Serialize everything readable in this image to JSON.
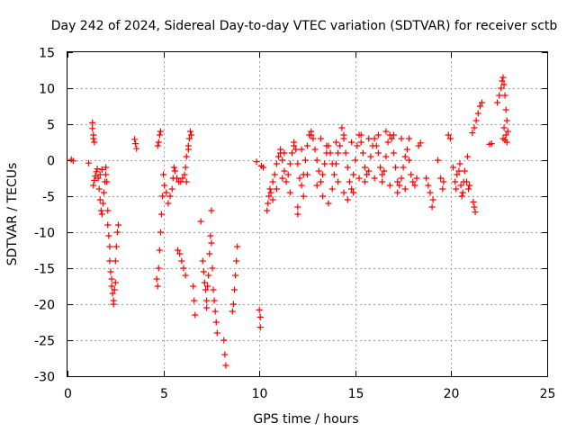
{
  "chart_data": {
    "type": "scatter",
    "title": "Day 242 of 2024, Sidereal Day-to-day VTEC variation (SDTVAR) for receiver sctb",
    "xlabel": "GPS time / hours",
    "ylabel": "SDTVAR / TECUs",
    "xlim": [
      0,
      25
    ],
    "ylim": [
      -30,
      15
    ],
    "x_ticks": [
      0,
      5,
      10,
      15,
      20,
      25
    ],
    "y_ticks": [
      15,
      10,
      5,
      0,
      -5,
      -10,
      -15,
      -20,
      -25,
      -30
    ],
    "x_tick_labels": [
      "0",
      "5",
      "10",
      "15",
      "20",
      "25"
    ],
    "y_tick_labels": [
      "15",
      "10",
      "5",
      "0",
      "-5",
      "-10",
      "-15",
      "-20",
      "-25",
      "-30"
    ],
    "grid": true,
    "marker": "+",
    "marker_color": "#ff0000",
    "series": [
      {
        "name": "SDTVAR",
        "points": [
          [
            0.2,
            0.1
          ],
          [
            0.3,
            -0.1
          ],
          [
            1.1,
            -0.4
          ],
          [
            1.3,
            5.2
          ],
          [
            1.3,
            4.4
          ],
          [
            1.35,
            3.5
          ],
          [
            1.35,
            3.0
          ],
          [
            1.4,
            2.5
          ],
          [
            1.35,
            -3.5
          ],
          [
            1.4,
            -2.8
          ],
          [
            1.45,
            -2.2
          ],
          [
            1.5,
            -1.6
          ],
          [
            1.55,
            -1.2
          ],
          [
            1.6,
            -2.5
          ],
          [
            1.65,
            -4.0
          ],
          [
            1.7,
            -5.5
          ],
          [
            1.75,
            -7.0
          ],
          [
            1.8,
            -7.5
          ],
          [
            1.85,
            -6.0
          ],
          [
            1.9,
            -4.5
          ],
          [
            1.95,
            -3.0
          ],
          [
            2.0,
            -2.0
          ],
          [
            2.05,
            -3.0
          ],
          [
            2.1,
            -7.0
          ],
          [
            2.1,
            -9.0
          ],
          [
            2.15,
            -10.5
          ],
          [
            2.2,
            -12.0
          ],
          [
            2.2,
            -14.0
          ],
          [
            2.25,
            -15.5
          ],
          [
            2.3,
            -17.5
          ],
          [
            2.35,
            -18.5
          ],
          [
            2.4,
            -19.5
          ],
          [
            2.45,
            -18.0
          ],
          [
            2.5,
            -17.0
          ],
          [
            2.5,
            -14.0
          ],
          [
            2.55,
            -12.0
          ],
          [
            2.3,
            -16.5
          ],
          [
            2.4,
            -20.0
          ],
          [
            2.6,
            -10.0
          ],
          [
            2.65,
            -9.0
          ],
          [
            2.0,
            -1.0
          ],
          [
            1.8,
            -1.3
          ],
          [
            1.7,
            -2.0
          ],
          [
            3.5,
            2.9
          ],
          [
            3.55,
            2.3
          ],
          [
            3.6,
            1.6
          ],
          [
            4.65,
            -16.5
          ],
          [
            4.7,
            -17.5
          ],
          [
            4.75,
            -15.0
          ],
          [
            4.8,
            -12.5
          ],
          [
            4.85,
            -10.0
          ],
          [
            4.9,
            -7.5
          ],
          [
            4.95,
            -5.0
          ],
          [
            5.0,
            -2.0
          ],
          [
            4.7,
            2.0
          ],
          [
            4.75,
            2.5
          ],
          [
            4.8,
            3.5
          ],
          [
            4.85,
            4.0
          ],
          [
            5.05,
            -3.5
          ],
          [
            5.15,
            -4.5
          ],
          [
            5.25,
            -6.0
          ],
          [
            5.35,
            -5.0
          ],
          [
            5.45,
            -4.0
          ],
          [
            5.5,
            -2.5
          ],
          [
            5.55,
            -1.0
          ],
          [
            5.6,
            -1.5
          ],
          [
            5.7,
            -2.5
          ],
          [
            5.8,
            -3.0
          ],
          [
            5.9,
            -3.0
          ],
          [
            6.0,
            -2.5
          ],
          [
            6.1,
            -2.0
          ],
          [
            6.15,
            -1.0
          ],
          [
            6.2,
            0.5
          ],
          [
            6.3,
            2.0
          ],
          [
            6.35,
            3.0
          ],
          [
            6.4,
            4.0
          ],
          [
            6.45,
            3.5
          ],
          [
            6.3,
            1.5
          ],
          [
            6.2,
            -3.0
          ],
          [
            5.75,
            -12.5
          ],
          [
            5.85,
            -13.0
          ],
          [
            5.95,
            -14.0
          ],
          [
            6.05,
            -15.0
          ],
          [
            6.15,
            -16.0
          ],
          [
            6.55,
            -17.5
          ],
          [
            6.6,
            -19.5
          ],
          [
            6.65,
            -21.5
          ],
          [
            6.95,
            -8.5
          ],
          [
            7.05,
            -14.0
          ],
          [
            7.1,
            -15.5
          ],
          [
            7.15,
            -17.0
          ],
          [
            7.2,
            -18.0
          ],
          [
            7.25,
            -19.5
          ],
          [
            7.3,
            -17.5
          ],
          [
            7.35,
            -16.0
          ],
          [
            7.4,
            -13.0
          ],
          [
            7.45,
            -10.5
          ],
          [
            7.5,
            -7.0
          ],
          [
            7.5,
            -11.5
          ],
          [
            7.55,
            -15.0
          ],
          [
            7.6,
            -18.0
          ],
          [
            7.65,
            -19.5
          ],
          [
            7.7,
            -21.0
          ],
          [
            7.75,
            -22.5
          ],
          [
            7.8,
            -24.0
          ],
          [
            7.25,
            -20.5
          ],
          [
            8.15,
            -25.0
          ],
          [
            8.2,
            -27.0
          ],
          [
            8.25,
            -28.5
          ],
          [
            8.6,
            -21.0
          ],
          [
            8.65,
            -20.0
          ],
          [
            8.7,
            -18.0
          ],
          [
            8.75,
            -16.0
          ],
          [
            8.8,
            -14.0
          ],
          [
            8.85,
            -12.0
          ],
          [
            9.85,
            -0.2
          ],
          [
            10.0,
            -20.8
          ],
          [
            10.05,
            -21.8
          ],
          [
            10.05,
            -23.2
          ],
          [
            10.1,
            -0.8
          ],
          [
            10.2,
            -1.0
          ],
          [
            10.4,
            -7.0
          ],
          [
            10.45,
            -6.0
          ],
          [
            10.5,
            -5.0
          ],
          [
            10.55,
            -4.0
          ],
          [
            10.6,
            -4.5
          ],
          [
            10.7,
            -3.0
          ],
          [
            10.8,
            -2.0
          ],
          [
            10.9,
            -0.5
          ],
          [
            11.0,
            0.5
          ],
          [
            11.1,
            1.0
          ],
          [
            11.2,
            0.0
          ],
          [
            11.3,
            -1.5
          ],
          [
            11.4,
            -3.0
          ],
          [
            11.5,
            -2.0
          ],
          [
            11.6,
            -0.5
          ],
          [
            11.7,
            1.0
          ],
          [
            11.8,
            2.5
          ],
          [
            11.9,
            1.5
          ],
          [
            12.0,
            -0.5
          ],
          [
            12.1,
            -2.5
          ],
          [
            12.2,
            -3.5
          ],
          [
            12.3,
            -2.0
          ],
          [
            12.4,
            0.0
          ],
          [
            12.5,
            2.0
          ],
          [
            12.6,
            3.5
          ],
          [
            12.7,
            4.0
          ],
          [
            12.8,
            3.0
          ],
          [
            12.9,
            1.5
          ],
          [
            13.0,
            0.0
          ],
          [
            13.1,
            -1.5
          ],
          [
            13.2,
            -3.0
          ],
          [
            13.3,
            -2.0
          ],
          [
            13.4,
            -0.5
          ],
          [
            13.5,
            1.0
          ],
          [
            13.6,
            2.0
          ],
          [
            13.7,
            1.0
          ],
          [
            13.8,
            -0.5
          ],
          [
            13.9,
            -2.0
          ],
          [
            14.0,
            -0.5
          ],
          [
            14.1,
            1.0
          ],
          [
            14.2,
            2.0
          ],
          [
            14.3,
            4.5
          ],
          [
            14.4,
            3.0
          ],
          [
            14.5,
            1.0
          ],
          [
            14.6,
            -1.0
          ],
          [
            14.7,
            -3.0
          ],
          [
            14.8,
            -4.0
          ],
          [
            14.9,
            -2.0
          ],
          [
            15.0,
            0.0
          ],
          [
            15.1,
            2.0
          ],
          [
            15.2,
            3.5
          ],
          [
            15.3,
            2.5
          ],
          [
            15.4,
            1.0
          ],
          [
            15.5,
            -1.0
          ],
          [
            15.6,
            -2.0
          ],
          [
            15.7,
            -1.5
          ],
          [
            15.8,
            0.5
          ],
          [
            15.9,
            2.0
          ],
          [
            16.0,
            3.0
          ],
          [
            16.1,
            2.0
          ],
          [
            16.2,
            1.0
          ],
          [
            16.3,
            -1.0
          ],
          [
            16.4,
            -2.0
          ],
          [
            16.5,
            -1.5
          ],
          [
            16.6,
            0.5
          ],
          [
            16.7,
            2.5
          ],
          [
            16.8,
            3.5
          ],
          [
            16.9,
            3.0
          ],
          [
            17.0,
            1.0
          ],
          [
            17.1,
            -1.0
          ],
          [
            17.2,
            -3.0
          ],
          [
            17.3,
            -3.5
          ],
          [
            17.4,
            -2.5
          ],
          [
            17.5,
            -1.0
          ],
          [
            17.6,
            0.5
          ],
          [
            17.7,
            1.5
          ],
          [
            17.8,
            0.0
          ],
          [
            17.9,
            -2.0
          ],
          [
            18.0,
            -3.0
          ],
          [
            18.1,
            -3.5
          ],
          [
            18.2,
            -2.5
          ],
          [
            18.3,
            2.0
          ],
          [
            18.4,
            2.4
          ],
          [
            10.7,
            -5.5
          ],
          [
            10.9,
            -4.0
          ],
          [
            11.2,
            -2.5
          ],
          [
            11.6,
            -4.5
          ],
          [
            12.0,
            -6.5
          ],
          [
            12.3,
            -5.0
          ],
          [
            12.0,
            -7.5
          ],
          [
            12.5,
            -2.0
          ],
          [
            13.0,
            -3.5
          ],
          [
            13.3,
            -5.0
          ],
          [
            13.6,
            -6.0
          ],
          [
            13.8,
            -4.0
          ],
          [
            14.1,
            -3.0
          ],
          [
            14.4,
            -4.5
          ],
          [
            14.6,
            -5.5
          ],
          [
            14.9,
            -4.5
          ],
          [
            15.2,
            -2.5
          ],
          [
            15.5,
            -3.0
          ],
          [
            16.0,
            -2.5
          ],
          [
            16.4,
            -3.0
          ],
          [
            16.8,
            -3.5
          ],
          [
            17.2,
            -4.5
          ],
          [
            17.6,
            -4.0
          ],
          [
            11.1,
            1.5
          ],
          [
            11.3,
            1.0
          ],
          [
            11.8,
            2.0
          ],
          [
            12.2,
            1.5
          ],
          [
            12.7,
            3.5
          ],
          [
            13.2,
            3.0
          ],
          [
            13.5,
            2.0
          ],
          [
            14.0,
            2.5
          ],
          [
            14.4,
            3.5
          ],
          [
            14.8,
            2.5
          ],
          [
            15.3,
            3.5
          ],
          [
            15.7,
            3.0
          ],
          [
            16.2,
            3.5
          ],
          [
            16.6,
            4.0
          ],
          [
            17.0,
            3.5
          ],
          [
            17.4,
            3.0
          ],
          [
            17.8,
            3.0
          ],
          [
            18.7,
            -2.5
          ],
          [
            18.8,
            -3.5
          ],
          [
            18.9,
            -4.5
          ],
          [
            19.0,
            -6.5
          ],
          [
            19.05,
            -5.5
          ],
          [
            19.3,
            0.0
          ],
          [
            19.45,
            -2.5
          ],
          [
            19.55,
            -4.0
          ],
          [
            19.6,
            -3.0
          ],
          [
            19.85,
            3.5
          ],
          [
            19.95,
            3.0
          ],
          [
            20.1,
            -1.0
          ],
          [
            20.2,
            -3.0
          ],
          [
            20.25,
            -4.0
          ],
          [
            20.3,
            -2.0
          ],
          [
            20.4,
            -1.5
          ],
          [
            20.45,
            -0.5
          ],
          [
            20.5,
            -3.5
          ],
          [
            20.55,
            -5.0
          ],
          [
            20.6,
            -4.5
          ],
          [
            20.65,
            -3.0
          ],
          [
            20.7,
            -1.5
          ],
          [
            20.8,
            -3.0
          ],
          [
            20.9,
            -4.0
          ],
          [
            20.95,
            -3.5
          ],
          [
            20.85,
            0.5
          ],
          [
            21.15,
            -5.8
          ],
          [
            21.2,
            -6.5
          ],
          [
            21.25,
            -7.2
          ],
          [
            21.1,
            3.8
          ],
          [
            21.2,
            4.5
          ],
          [
            21.3,
            5.5
          ],
          [
            21.4,
            6.5
          ],
          [
            21.5,
            7.5
          ],
          [
            21.6,
            8.0
          ],
          [
            22.0,
            2.2
          ],
          [
            22.1,
            2.3
          ],
          [
            22.4,
            8.0
          ],
          [
            22.5,
            9.0
          ],
          [
            22.6,
            10.0
          ],
          [
            22.65,
            11.0
          ],
          [
            22.7,
            11.5
          ],
          [
            22.75,
            10.5
          ],
          [
            22.8,
            9.0
          ],
          [
            22.85,
            7.0
          ],
          [
            22.9,
            5.5
          ],
          [
            22.95,
            4.0
          ],
          [
            22.7,
            3.0
          ],
          [
            22.8,
            2.8
          ],
          [
            22.9,
            2.5
          ],
          [
            22.75,
            4.5
          ],
          [
            22.85,
            3.5
          ]
        ]
      }
    ]
  }
}
